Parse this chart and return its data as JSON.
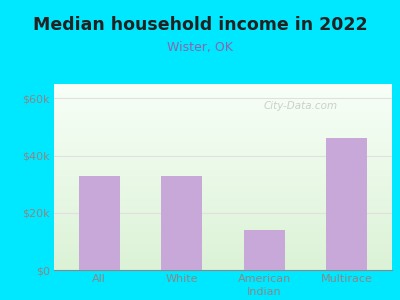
{
  "title": "Median household income in 2022",
  "subtitle": "Wister, OK",
  "categories": [
    "All",
    "White",
    "American\nIndian",
    "Multirace"
  ],
  "values": [
    33000,
    33000,
    14000,
    46000
  ],
  "bar_color": "#c8a8d8",
  "background_outer": "#00e8ff",
  "yticks": [
    0,
    20000,
    40000,
    60000
  ],
  "ytick_labels": [
    "$0",
    "$20k",
    "$40k",
    "$60k"
  ],
  "ylim": [
    0,
    65000
  ],
  "title_color": "#222222",
  "subtitle_color": "#8866aa",
  "tick_color": "#888888",
  "grid_color": "#e0e0e0",
  "watermark": "City-Data.com"
}
